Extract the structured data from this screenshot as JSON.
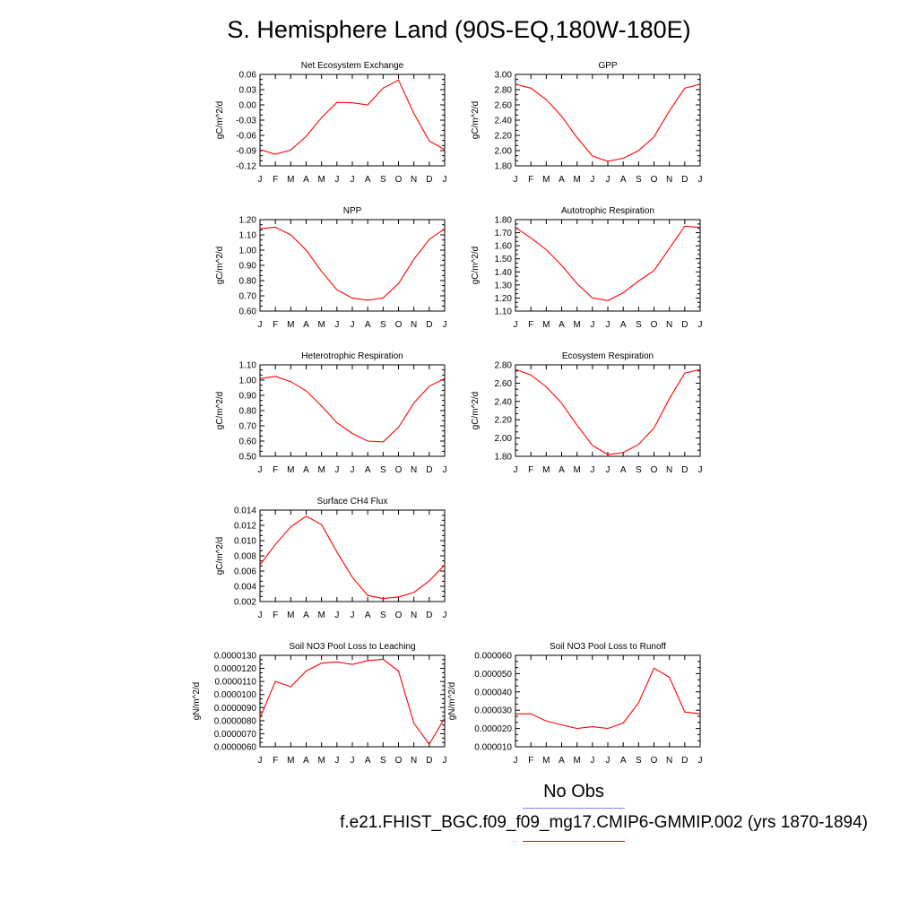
{
  "title": "S. Hemisphere Land (90S-EQ,180W-180E)",
  "colors": {
    "model_line": "#ff0000",
    "obs_line": "#7f7fff",
    "axis": "#000000"
  },
  "legend": {
    "obs_label": "No Obs",
    "model_label": "f.e21.FHIST_BGC.f09_f09_mg17.CMIP6-GMMIP.002 (yrs 1870-1894)"
  },
  "chart_data": [
    {
      "type": "line",
      "title": "Net Ecosystem Exchange",
      "ylabel": "gC/m^2/d",
      "categories": [
        "J",
        "F",
        "M",
        "A",
        "M",
        "J",
        "J",
        "A",
        "S",
        "O",
        "N",
        "D",
        "J"
      ],
      "yticks": [
        "-0.12",
        "-0.09",
        "-0.06",
        "-0.03",
        "0.00",
        "0.03",
        "0.06"
      ],
      "ylim": [
        -0.12,
        0.06
      ],
      "series": [
        {
          "values": [
            -0.088,
            -0.097,
            -0.089,
            -0.062,
            -0.025,
            0.005,
            0.004,
            0.0,
            0.033,
            0.049,
            -0.017,
            -0.071,
            -0.088
          ]
        }
      ]
    },
    {
      "type": "line",
      "title": "GPP",
      "ylabel": "gC/m^2/d",
      "categories": [
        "J",
        "F",
        "M",
        "A",
        "M",
        "J",
        "J",
        "A",
        "S",
        "O",
        "N",
        "D",
        "J"
      ],
      "yticks": [
        "1.80",
        "2.00",
        "2.20",
        "2.40",
        "2.60",
        "2.80",
        "3.00"
      ],
      "ylim": [
        1.8,
        3.0
      ],
      "series": [
        {
          "values": [
            2.87,
            2.82,
            2.67,
            2.45,
            2.17,
            1.93,
            1.86,
            1.9,
            2.0,
            2.18,
            2.52,
            2.82,
            2.87
          ]
        }
      ]
    },
    {
      "type": "line",
      "title": "NPP",
      "ylabel": "gC/m^2/d",
      "categories": [
        "J",
        "F",
        "M",
        "A",
        "M",
        "J",
        "J",
        "A",
        "S",
        "O",
        "N",
        "D",
        "J"
      ],
      "yticks": [
        "0.60",
        "0.70",
        "0.80",
        "0.90",
        "1.00",
        "1.10",
        "1.20"
      ],
      "ylim": [
        0.6,
        1.2
      ],
      "series": [
        {
          "values": [
            1.14,
            1.15,
            1.1,
            1.0,
            0.86,
            0.74,
            0.685,
            0.672,
            0.686,
            0.78,
            0.94,
            1.07,
            1.14
          ]
        }
      ]
    },
    {
      "type": "line",
      "title": "Autotrophic Respiration",
      "ylabel": "gC/m^2/d",
      "categories": [
        "J",
        "F",
        "M",
        "A",
        "M",
        "J",
        "J",
        "A",
        "S",
        "O",
        "N",
        "D",
        "J"
      ],
      "yticks": [
        "1.10",
        "1.20",
        "1.30",
        "1.40",
        "1.50",
        "1.60",
        "1.70",
        "1.80"
      ],
      "ylim": [
        1.1,
        1.8
      ],
      "series": [
        {
          "values": [
            1.74,
            1.66,
            1.57,
            1.45,
            1.31,
            1.2,
            1.18,
            1.24,
            1.33,
            1.41,
            1.58,
            1.75,
            1.74
          ]
        }
      ]
    },
    {
      "type": "line",
      "title": "Heterotrophic Respiration",
      "ylabel": "gC/m^2/d",
      "categories": [
        "J",
        "F",
        "M",
        "A",
        "M",
        "J",
        "J",
        "A",
        "S",
        "O",
        "N",
        "D",
        "J"
      ],
      "yticks": [
        "0.50",
        "0.60",
        "0.70",
        "0.80",
        "0.90",
        "1.00",
        "1.10"
      ],
      "ylim": [
        0.5,
        1.1
      ],
      "series": [
        {
          "values": [
            1.01,
            1.025,
            0.99,
            0.93,
            0.83,
            0.72,
            0.65,
            0.6,
            0.595,
            0.69,
            0.85,
            0.96,
            1.01
          ]
        }
      ]
    },
    {
      "type": "line",
      "title": "Ecosystem Respiration",
      "ylabel": "gC/m^2/d",
      "categories": [
        "J",
        "F",
        "M",
        "A",
        "M",
        "J",
        "J",
        "A",
        "S",
        "O",
        "N",
        "D",
        "J"
      ],
      "yticks": [
        "1.80",
        "2.00",
        "2.20",
        "2.40",
        "2.60",
        "2.80"
      ],
      "ylim": [
        1.8,
        2.8
      ],
      "series": [
        {
          "values": [
            2.75,
            2.69,
            2.56,
            2.38,
            2.14,
            1.92,
            1.82,
            1.84,
            1.93,
            2.11,
            2.43,
            2.71,
            2.75
          ]
        }
      ]
    },
    {
      "type": "line",
      "title": "Surface CH4 Flux",
      "ylabel": "gC/m^2/d",
      "categories": [
        "J",
        "F",
        "M",
        "A",
        "M",
        "J",
        "J",
        "A",
        "S",
        "O",
        "N",
        "D",
        "J"
      ],
      "yticks": [
        "0.002",
        "0.004",
        "0.006",
        "0.008",
        "0.010",
        "0.012",
        "0.014"
      ],
      "ylim": [
        0.002,
        0.014
      ],
      "series": [
        {
          "values": [
            0.0068,
            0.0095,
            0.0118,
            0.0132,
            0.0121,
            0.0085,
            0.0052,
            0.0028,
            0.0024,
            0.0026,
            0.0032,
            0.0047,
            0.0068
          ]
        }
      ]
    },
    {
      "type": "line",
      "title": "Soil NO3 Pool Loss to Leaching",
      "ylabel": "gN/m^2/d",
      "categories": [
        "J",
        "F",
        "M",
        "A",
        "M",
        "J",
        "J",
        "A",
        "S",
        "O",
        "N",
        "D",
        "J"
      ],
      "yticks": [
        "0.0000060",
        "0.0000070",
        "0.0000080",
        "0.0000090",
        "0.0000100",
        "0.0000110",
        "0.0000120",
        "0.0000130"
      ],
      "ylim": [
        6e-06,
        1.3e-05
      ],
      "series": [
        {
          "values": [
            8.2e-06,
            1.1e-05,
            1.06e-05,
            1.18e-05,
            1.24e-05,
            1.25e-05,
            1.23e-05,
            1.26e-05,
            1.27e-05,
            1.18e-05,
            7.8e-06,
            6.2e-06,
            8.2e-06
          ]
        }
      ]
    },
    {
      "type": "line",
      "title": "Soil NO3 Pool Loss to Runoff",
      "ylabel": "gN/m^2/d",
      "categories": [
        "J",
        "F",
        "M",
        "A",
        "M",
        "J",
        "J",
        "A",
        "S",
        "O",
        "N",
        "D",
        "J"
      ],
      "yticks": [
        "0.000010",
        "0.000020",
        "0.000030",
        "0.000040",
        "0.000050",
        "0.000060"
      ],
      "ylim": [
        1e-05,
        6e-05
      ],
      "series": [
        {
          "values": [
            2.8e-05,
            2.8e-05,
            2.4e-05,
            2.2e-05,
            2e-05,
            2.1e-05,
            2e-05,
            2.3e-05,
            3.4e-05,
            5.3e-05,
            4.8e-05,
            2.9e-05,
            2.8e-05
          ]
        }
      ]
    }
  ]
}
